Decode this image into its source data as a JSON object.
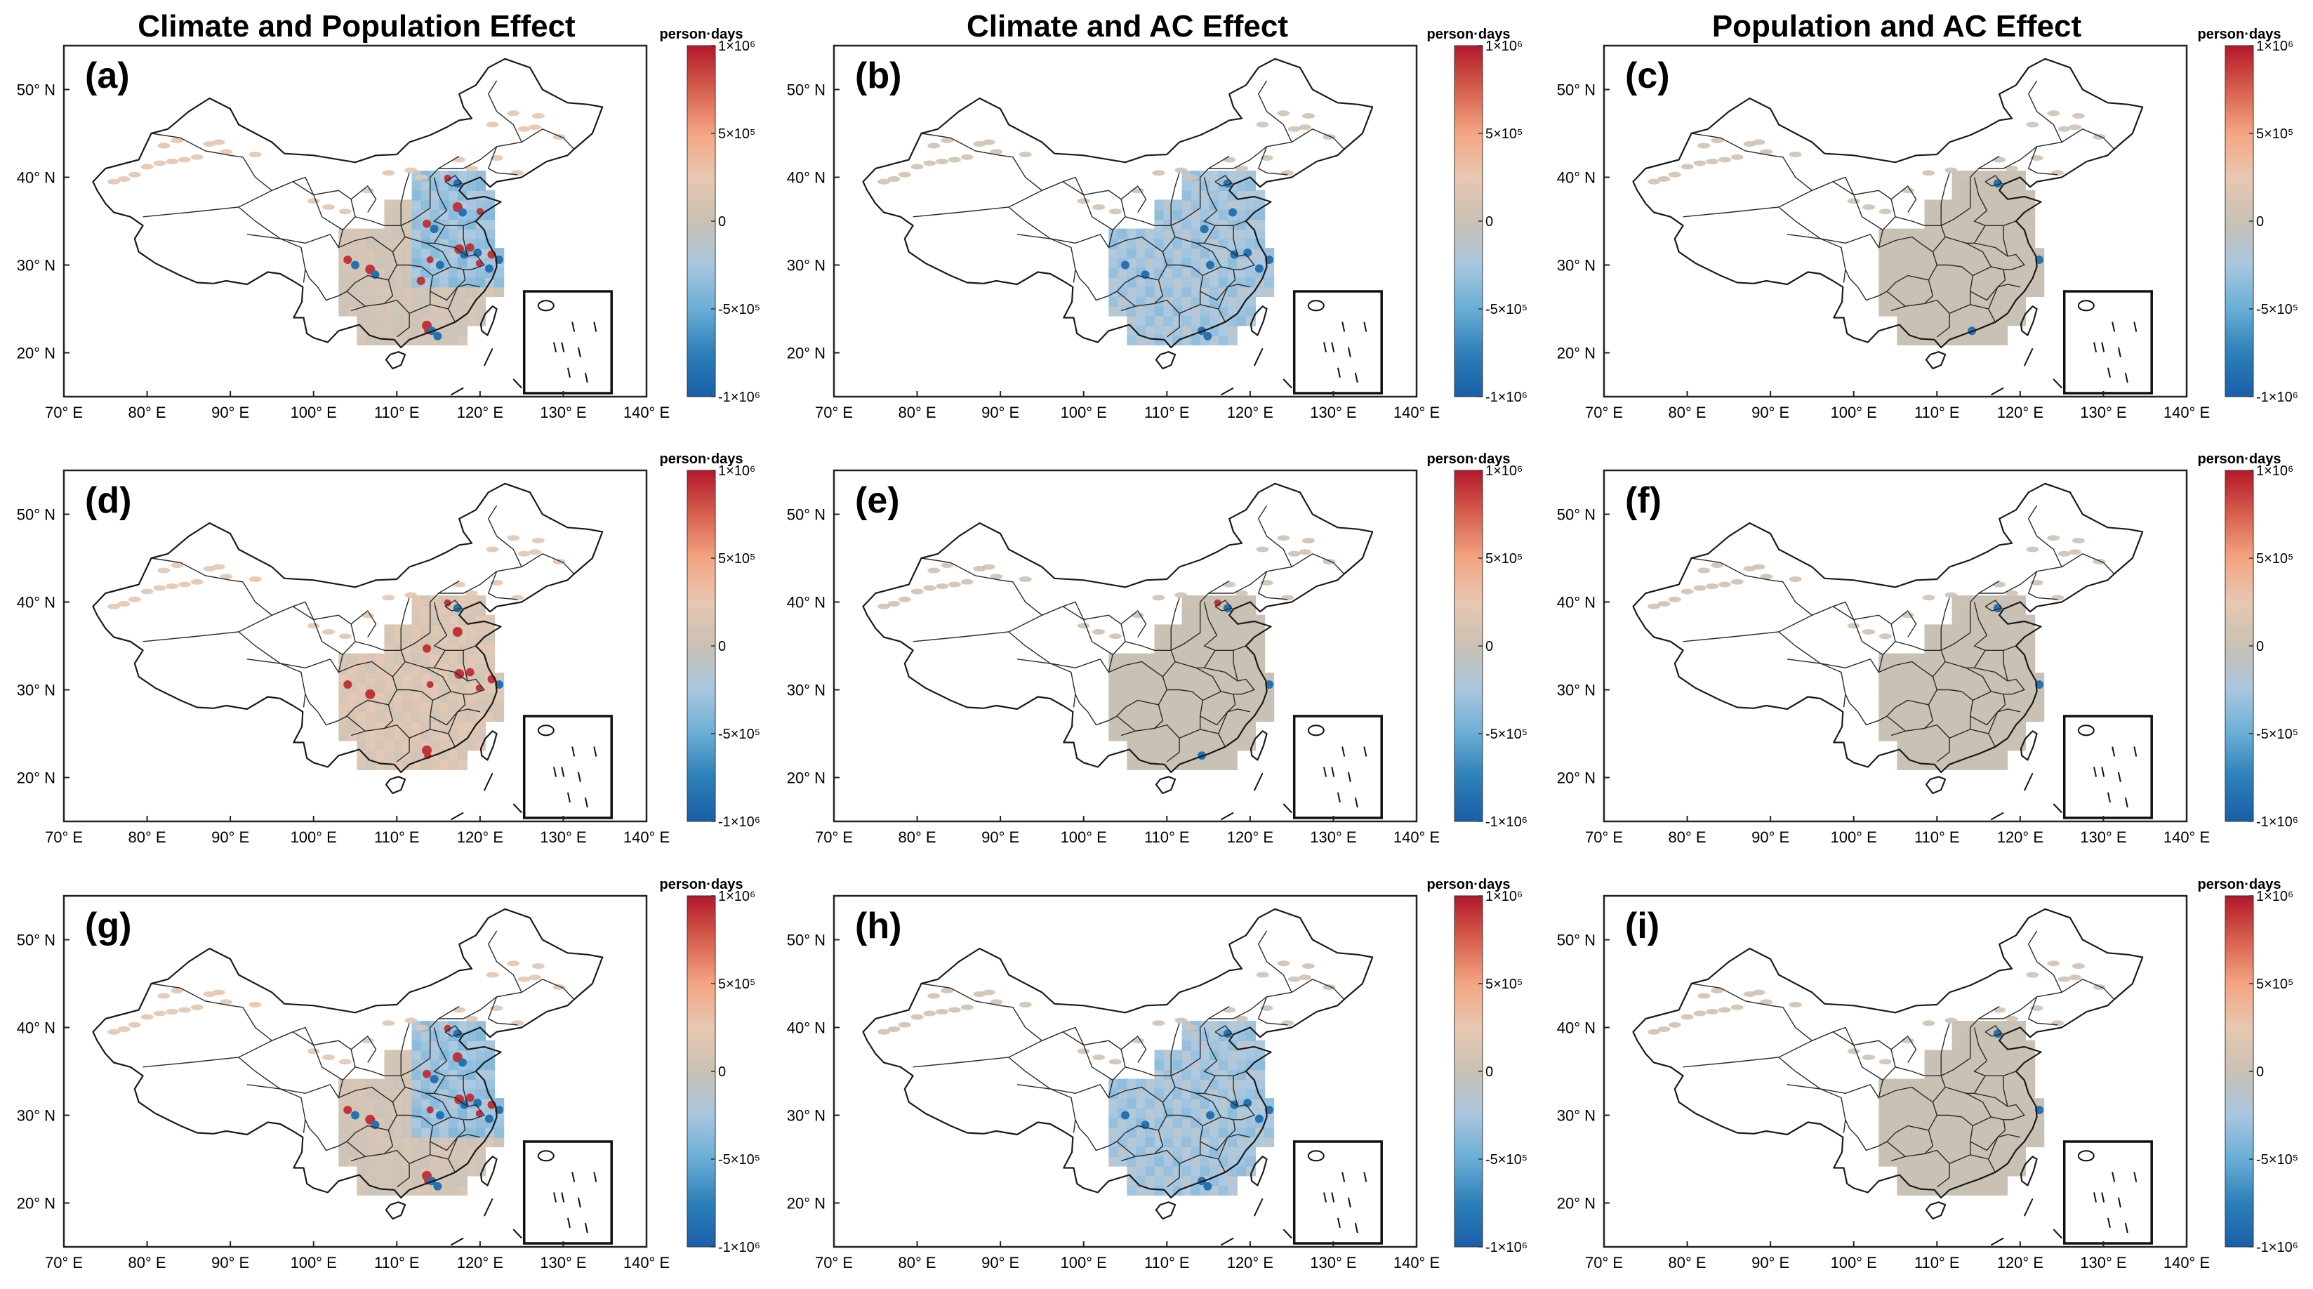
{
  "figure": {
    "column_titles": [
      "Climate and Population Effect",
      "Climate and AC Effect",
      "Population and AC Effect"
    ],
    "colorbar": {
      "unit_label": "person·days",
      "tick_labels": [
        "1×10⁶",
        "5×10⁵",
        "0",
        "-5×10⁵",
        "-1×10⁶"
      ],
      "color_stops": [
        "#b2182b",
        "#d6604d",
        "#f4a582",
        "#e8c7b0",
        "#c9c1b4",
        "#a8c6df",
        "#6aaed6",
        "#2c7fb8",
        "#1a5fa8"
      ]
    },
    "x_axis_labels": [
      "70° E",
      "80° E",
      "90° E",
      "100° E",
      "110° E",
      "120° E",
      "130° E",
      "140° E"
    ],
    "y_axis_labels": [
      "50° N",
      "40° N",
      "30° N",
      "20° N"
    ]
  },
  "chart_data": {
    "type": "map-grid",
    "rows": 3,
    "cols": 3,
    "lon_range": [
      70,
      140
    ],
    "lat_range": [
      15,
      55
    ],
    "value_range": [
      -1000000,
      1000000
    ],
    "panels": [
      {
        "label": "(a)",
        "column_title": "Climate and Population Effect",
        "dominant_effect": "mixed",
        "red_hotspots": 14,
        "blue_hotspots": 12
      },
      {
        "label": "(b)",
        "column_title": "Climate and AC Effect",
        "dominant_effect": "negative",
        "red_hotspots": 0,
        "blue_hotspots": 12
      },
      {
        "label": "(c)",
        "column_title": "Population and AC Effect",
        "dominant_effect": "near-zero",
        "red_hotspots": 0,
        "blue_hotspots": 3
      },
      {
        "label": "(d)",
        "column_title": "Climate and Population Effect",
        "dominant_effect": "positive",
        "red_hotspots": 12,
        "blue_hotspots": 2
      },
      {
        "label": "(e)",
        "column_title": "Climate and AC Effect",
        "dominant_effect": "near-zero",
        "red_hotspots": 1,
        "blue_hotspots": 3
      },
      {
        "label": "(f)",
        "column_title": "Population and AC Effect",
        "dominant_effect": "near-zero",
        "red_hotspots": 0,
        "blue_hotspots": 2
      },
      {
        "label": "(g)",
        "column_title": "Climate and Population Effect",
        "dominant_effect": "mixed",
        "red_hotspots": 12,
        "blue_hotspots": 12
      },
      {
        "label": "(h)",
        "column_title": "Climate and AC Effect",
        "dominant_effect": "negative",
        "red_hotspots": 0,
        "blue_hotspots": 10
      },
      {
        "label": "(i)",
        "column_title": "Population and AC Effect",
        "dominant_effect": "near-zero",
        "red_hotspots": 0,
        "blue_hotspots": 2
      }
    ]
  }
}
